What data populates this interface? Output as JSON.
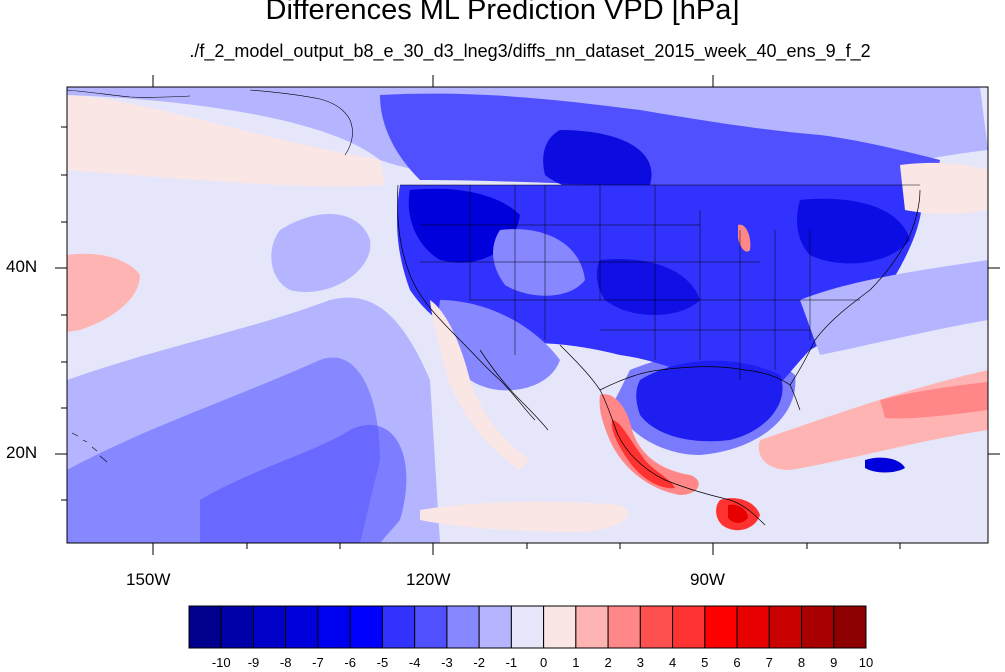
{
  "title": "Differences ML Prediction VPD [hPa]",
  "subtitle": "./f_2_model_output_b8_e_30_d3_lneg3/diffs_nn_dataset_2015_week_40_ens_9_f_2",
  "lat_labels": [
    "40N",
    "20N"
  ],
  "lon_labels": [
    "150W",
    "120W",
    "90W"
  ],
  "colorbar": {
    "labels": [
      "-10",
      "-9",
      "-8",
      "-7",
      "-6",
      "-5",
      "-4",
      "-3",
      "-2",
      "-1",
      "0",
      "1",
      "2",
      "3",
      "4",
      "5",
      "6",
      "7",
      "8",
      "9",
      "10"
    ],
    "colors": [
      "#00008c",
      "#0000a8",
      "#0000c8",
      "#0000dc",
      "#0000f0",
      "#0000ff",
      "#3232ff",
      "#5050ff",
      "#8787ff",
      "#b4b4ff",
      "#e6e6fa",
      "#fbe6e6",
      "#ffb4b4",
      "#ff8787",
      "#ff5050",
      "#ff3232",
      "#ff0000",
      "#e60000",
      "#c80000",
      "#a80000",
      "#8c0000"
    ]
  },
  "map_colors": {
    "ocean_base": "#e6e6fa",
    "light_blue": "#b4b4ff",
    "mid_blue": "#8787ff",
    "blue": "#5050ff",
    "strong_blue": "#3232ff",
    "deep_blue": "#0000dc",
    "light_pink": "#fbe6e6",
    "pink": "#ffb4b4",
    "salmon": "#ff8787",
    "red": "#ff3232",
    "dark_red": "#e60000"
  }
}
